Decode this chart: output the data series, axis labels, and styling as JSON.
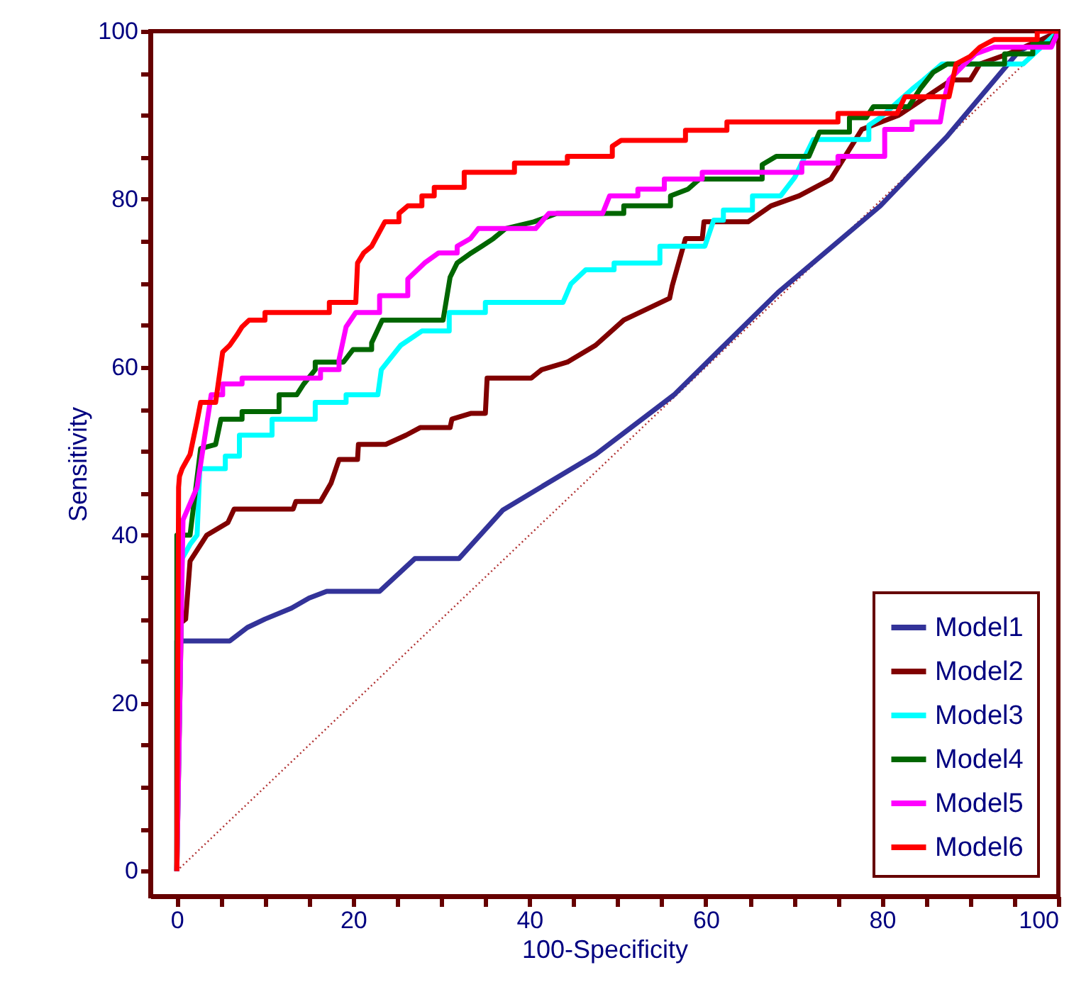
{
  "chart_data": {
    "type": "line",
    "xlabel": "100-Specificity",
    "ylabel": "Sensitivity",
    "xlim": [
      -3,
      100
    ],
    "ylim": [
      -3,
      100
    ],
    "xticks": [
      0,
      {
        "value": 5,
        "label": null
      },
      {
        "value": 10,
        "label": null
      },
      {
        "value": 15,
        "label": null
      },
      20,
      {
        "value": 25,
        "label": null
      },
      {
        "value": 30,
        "label": null
      },
      {
        "value": 35,
        "label": null
      },
      40,
      {
        "value": 45,
        "label": null
      },
      {
        "value": 50,
        "label": null
      },
      {
        "value": 55,
        "label": null
      },
      60,
      {
        "value": 65,
        "label": null
      },
      {
        "value": 70,
        "label": null
      },
      {
        "value": 75,
        "label": null
      },
      80,
      {
        "value": 85,
        "label": null
      },
      {
        "value": 90,
        "label": null
      },
      {
        "value": 95,
        "label": null
      },
      100
    ],
    "yticks": [
      0,
      {
        "value": 5,
        "label": null
      },
      {
        "value": 10,
        "label": null
      },
      {
        "value": 15,
        "label": null
      },
      20,
      {
        "value": 25,
        "label": null
      },
      {
        "value": 30,
        "label": null
      },
      {
        "value": 35,
        "label": null
      },
      40,
      {
        "value": 45,
        "label": null
      },
      {
        "value": 50,
        "label": null
      },
      {
        "value": 55,
        "label": null
      },
      60,
      {
        "value": 65,
        "label": null
      },
      {
        "value": 70,
        "label": null
      },
      {
        "value": 75,
        "label": null
      },
      80,
      {
        "value": 85,
        "label": null
      },
      {
        "value": 90,
        "label": null
      },
      {
        "value": 95,
        "label": null
      },
      100
    ],
    "grid": false,
    "legend": "bottom right",
    "marker": "none",
    "line_style": "solid",
    "series": [
      {
        "name": "Model1",
        "color": "#333399",
        "x": [
          0,
          0,
          6,
          8,
          10,
          13,
          15,
          17,
          23,
          27,
          32,
          37,
          47.5,
          56.4,
          68.2,
          79.8,
          87.4,
          95.5,
          100
        ],
        "values": [
          0,
          27.4,
          27.4,
          29,
          30,
          31.3,
          32.5,
          33.3,
          33.3,
          37.2,
          37.2,
          43,
          49.6,
          56.7,
          68.9,
          79.2,
          87.5,
          97.6,
          100
        ]
      },
      {
        "name": "Model2",
        "color": "#800000",
        "x": [
          0,
          0.5,
          1,
          1.5,
          3.4,
          5.8,
          6.5,
          8.2,
          13.2,
          13.5,
          16.3,
          17.5,
          18.4,
          20.5,
          20.6,
          23.7,
          26,
          27.6,
          31,
          31.2,
          33.4,
          35,
          35.2,
          40.2,
          41.4,
          44.3,
          47.5,
          50.7,
          55.9,
          56.2,
          57.7,
          59.6,
          59.8,
          64.8,
          67.4,
          70.6,
          74.2,
          77.7,
          81.9,
          87.9,
          90,
          91.1,
          94.3,
          99.2,
          100
        ],
        "values": [
          0,
          29.6,
          30,
          36.9,
          40,
          41.5,
          43.1,
          43.1,
          43.1,
          44,
          44,
          46.2,
          49,
          49,
          50.8,
          50.8,
          51.9,
          52.8,
          52.8,
          53.8,
          54.5,
          54.5,
          58.7,
          58.7,
          59.7,
          60.6,
          62.6,
          65.6,
          68.2,
          69.7,
          75.3,
          75.3,
          77.3,
          77.3,
          79.2,
          80.4,
          82.4,
          88.3,
          90,
          94.2,
          94.2,
          96.1,
          97.3,
          99.5,
          100
        ]
      },
      {
        "name": "Model3",
        "color": "#00ffff",
        "x": [
          0,
          0.6,
          1.5,
          2.3,
          2.6,
          5.5,
          5.5,
          7.1,
          7.1,
          10.8,
          10.8,
          15.7,
          15.7,
          19.2,
          19.2,
          22.8,
          23.2,
          25.4,
          27.8,
          30.9,
          30.9,
          35,
          35,
          43.8,
          44.7,
          46.4,
          49.6,
          49.6,
          54.8,
          54.8,
          59.9,
          60.9,
          62,
          62,
          65.3,
          65.3,
          68.5,
          70.1,
          72.2,
          78.5,
          78.5,
          79.8,
          83.4,
          84.7,
          86.8,
          96,
          100
        ],
        "values": [
          0,
          37.2,
          38.9,
          40,
          47.9,
          47.9,
          49.4,
          49.4,
          51.9,
          51.9,
          53.8,
          53.8,
          55.8,
          55.8,
          56.7,
          56.7,
          59.7,
          62.6,
          64.3,
          64.3,
          66.5,
          66.5,
          67.7,
          67.7,
          69.9,
          71.6,
          71.6,
          72.4,
          72.4,
          74.4,
          74.4,
          77.5,
          77.5,
          78.7,
          78.7,
          80.4,
          80.4,
          82.6,
          87.1,
          87.1,
          88.8,
          89.7,
          93.1,
          94.2,
          96.1,
          96.1,
          100
        ]
      },
      {
        "name": "Model4",
        "color": "#006600",
        "x": [
          0,
          0,
          1.5,
          2.7,
          4.4,
          5,
          7.4,
          7.4,
          11.6,
          11.6,
          13.6,
          14.4,
          15.7,
          15.7,
          18.9,
          20,
          22.1,
          22.1,
          23.3,
          30.2,
          31,
          31.8,
          33.4,
          34.6,
          35.9,
          37.3,
          40.5,
          43.1,
          50.7,
          50.7,
          56,
          56,
          58,
          59.3,
          66.4,
          66.4,
          68,
          71.7,
          72.9,
          76.3,
          76.3,
          78.2,
          79,
          83,
          84.3,
          85.8,
          87.4,
          93.9,
          93.9,
          97.1,
          97.1,
          99.2,
          100
        ],
        "values": [
          0,
          40,
          40,
          50.3,
          50.8,
          53.8,
          53.8,
          54.7,
          54.7,
          56.7,
          56.7,
          58,
          59.7,
          60.6,
          60.6,
          62.1,
          62.1,
          62.9,
          65.6,
          65.6,
          70.7,
          72.4,
          73.6,
          74.4,
          75.3,
          76.5,
          77.3,
          78.3,
          78.3,
          79.2,
          79.2,
          80.4,
          81.2,
          82.4,
          82.4,
          84.1,
          85.1,
          85.1,
          88,
          88,
          89.7,
          89.7,
          91,
          91,
          93.1,
          95.1,
          96.1,
          96.1,
          97.3,
          97.3,
          98.5,
          98.5,
          100
        ]
      },
      {
        "name": "Model5",
        "color": "#ff00ff",
        "x": [
          0,
          0.7,
          2.3,
          3.9,
          5.2,
          5.2,
          7.4,
          7.4,
          16.3,
          16.3,
          18.4,
          18.4,
          19.2,
          20.3,
          23,
          23,
          26.2,
          26.2,
          28.1,
          29.7,
          31.8,
          31.8,
          33.3,
          34.2,
          40.7,
          42.2,
          48.3,
          49.1,
          52.3,
          52.3,
          55.3,
          55.3,
          59.6,
          59.6,
          70.9,
          70.9,
          75,
          75,
          80.3,
          80.3,
          83.4,
          83.4,
          86.6,
          87,
          87.6,
          89.2,
          90.6,
          92.7,
          99.2,
          100
        ],
        "values": [
          0,
          41.8,
          45.7,
          56.7,
          56.7,
          58,
          58,
          58.7,
          58.7,
          59.7,
          59.7,
          60.9,
          64.8,
          66.5,
          66.5,
          68.5,
          68.5,
          70.5,
          72.4,
          73.6,
          73.6,
          74.4,
          75.3,
          76.5,
          76.5,
          78.3,
          78.3,
          80.4,
          80.4,
          81.2,
          81.2,
          82.4,
          82.4,
          83.2,
          83.2,
          84.3,
          84.3,
          85.1,
          85.1,
          88.3,
          88.3,
          89.2,
          89.2,
          91.7,
          94.2,
          95.9,
          97.3,
          98.1,
          98.1,
          100
        ]
      },
      {
        "name": "Model6",
        "color": "#ff0000",
        "x": [
          0,
          0.2,
          0.3,
          0.6,
          1.5,
          2.3,
          2.7,
          4.4,
          5.2,
          6,
          6.8,
          7.4,
          8.2,
          10,
          10,
          17.3,
          17.3,
          20.3,
          20.5,
          21.2,
          22.1,
          23.6,
          25.2,
          25.2,
          26.2,
          27.8,
          27.8,
          29.2,
          29.2,
          32.6,
          32.6,
          38.3,
          38.3,
          44.3,
          44.3,
          49.4,
          49.4,
          50.4,
          57.7,
          57.7,
          62.4,
          62.4,
          75,
          75,
          81.7,
          82.6,
          87.6,
          88.4,
          90,
          91.1,
          92.7,
          97.6,
          97.6,
          100
        ],
        "values": [
          0,
          45.7,
          47,
          47.9,
          49.6,
          53.6,
          55.8,
          55.8,
          61.8,
          62.6,
          63.8,
          64.8,
          65.6,
          65.6,
          66.5,
          66.5,
          67.7,
          67.7,
          72.4,
          73.6,
          74.4,
          77.3,
          77.3,
          78.3,
          79.2,
          79.2,
          80.4,
          80.4,
          81.4,
          81.4,
          83.2,
          83.2,
          84.3,
          84.3,
          85.1,
          85.1,
          86.3,
          87,
          87,
          88.2,
          88.2,
          89.2,
          89.2,
          90.2,
          90.2,
          92.2,
          92.2,
          96.1,
          97,
          98.1,
          99,
          99,
          100,
          100
        ]
      },
      {
        "color": "#b03030",
        "line_style": "dotted",
        "x": [
          0,
          100
        ],
        "values": [
          0,
          100
        ]
      }
    ]
  }
}
